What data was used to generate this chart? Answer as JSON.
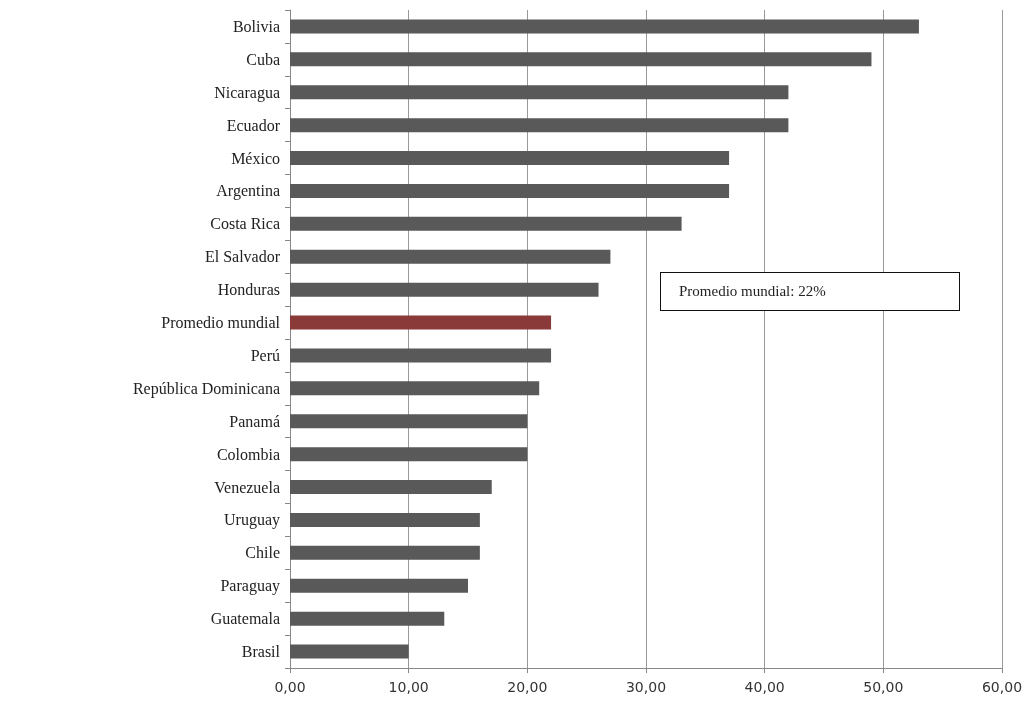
{
  "chart_data": {
    "type": "bar",
    "orientation": "horizontal",
    "categories": [
      "Bolivia",
      "Cuba",
      "Nicaragua",
      "Ecuador",
      "México",
      "Argentina",
      "Costa Rica",
      "El Salvador",
      "Honduras",
      "Promedio mundial",
      "Perú",
      "República Dominicana",
      "Panamá",
      "Colombia",
      "Venezuela",
      "Uruguay",
      "Chile",
      "Paraguay",
      "Guatemala",
      "Brasil"
    ],
    "values": [
      53,
      49,
      42,
      42,
      37,
      37,
      33,
      27,
      26,
      22,
      22,
      21,
      20,
      20,
      17,
      16,
      16,
      15,
      13,
      10
    ],
    "colors": [
      "#595959",
      "#595959",
      "#595959",
      "#595959",
      "#595959",
      "#595959",
      "#595959",
      "#595959",
      "#595959",
      "#8b3a3a",
      "#595959",
      "#595959",
      "#595959",
      "#595959",
      "#595959",
      "#595959",
      "#595959",
      "#595959",
      "#595959",
      "#595959"
    ],
    "xlim": [
      0,
      60
    ],
    "xticks": [
      {
        "value": 0,
        "label": "0,00"
      },
      {
        "value": 10,
        "label": "10,00"
      },
      {
        "value": 20,
        "label": "20,00"
      },
      {
        "value": 30,
        "label": "30,00"
      },
      {
        "value": 40,
        "label": "40,00"
      },
      {
        "value": 50,
        "label": "50,00"
      },
      {
        "value": 60,
        "label": "60,00"
      }
    ],
    "grid": "x",
    "annotations": [
      "Promedio mundial: 22%"
    ]
  }
}
